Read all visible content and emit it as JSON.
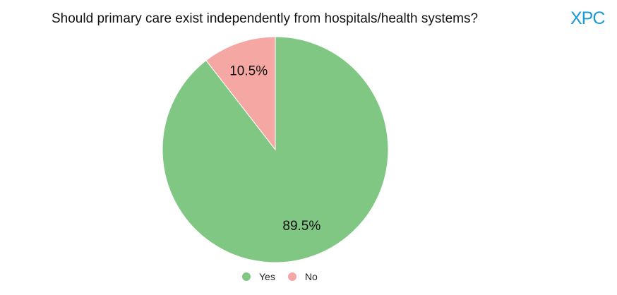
{
  "logo": {
    "text": "XPC",
    "color": "#1a9ad6"
  },
  "chart_data": {
    "type": "pie",
    "title": "Should primary care exist independently from hospitals/health systems?",
    "slices": [
      {
        "label": "Yes",
        "value": 89.5,
        "display": "89.5%",
        "color": "#81c784"
      },
      {
        "label": "No",
        "value": 10.5,
        "display": "10.5%",
        "color": "#f4a7a3"
      }
    ],
    "legend_position": "bottom"
  }
}
